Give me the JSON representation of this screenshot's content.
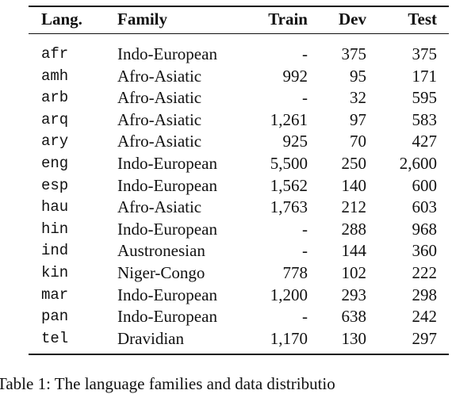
{
  "table": {
    "header": [
      "Lang.",
      "Family",
      "Train",
      "Dev",
      "Test"
    ],
    "rows": [
      [
        "afr",
        "Indo-European",
        "-",
        "375",
        "375"
      ],
      [
        "amh",
        "Afro-Asiatic",
        "992",
        "95",
        "171"
      ],
      [
        "arb",
        "Afro-Asiatic",
        "-",
        "32",
        "595"
      ],
      [
        "arq",
        "Afro-Asiatic",
        "1,261",
        "97",
        "583"
      ],
      [
        "ary",
        "Afro-Asiatic",
        "925",
        "70",
        "427"
      ],
      [
        "eng",
        "Indo-European",
        "5,500",
        "250",
        "2,600"
      ],
      [
        "esp",
        "Indo-European",
        "1,562",
        "140",
        "600"
      ],
      [
        "hau",
        "Afro-Asiatic",
        "1,763",
        "212",
        "603"
      ],
      [
        "hin",
        "Indo-European",
        "-",
        "288",
        "968"
      ],
      [
        "ind",
        "Austronesian",
        "-",
        "144",
        "360"
      ],
      [
        "kin",
        "Niger-Congo",
        "778",
        "102",
        "222"
      ],
      [
        "mar",
        "Indo-European",
        "1,200",
        "293",
        "298"
      ],
      [
        "pan",
        "Indo-European",
        "-",
        "638",
        "242"
      ],
      [
        "tel",
        "Dravidian",
        "1,170",
        "130",
        "297"
      ]
    ]
  },
  "caption": "Table 1: The language families and data distributio"
}
